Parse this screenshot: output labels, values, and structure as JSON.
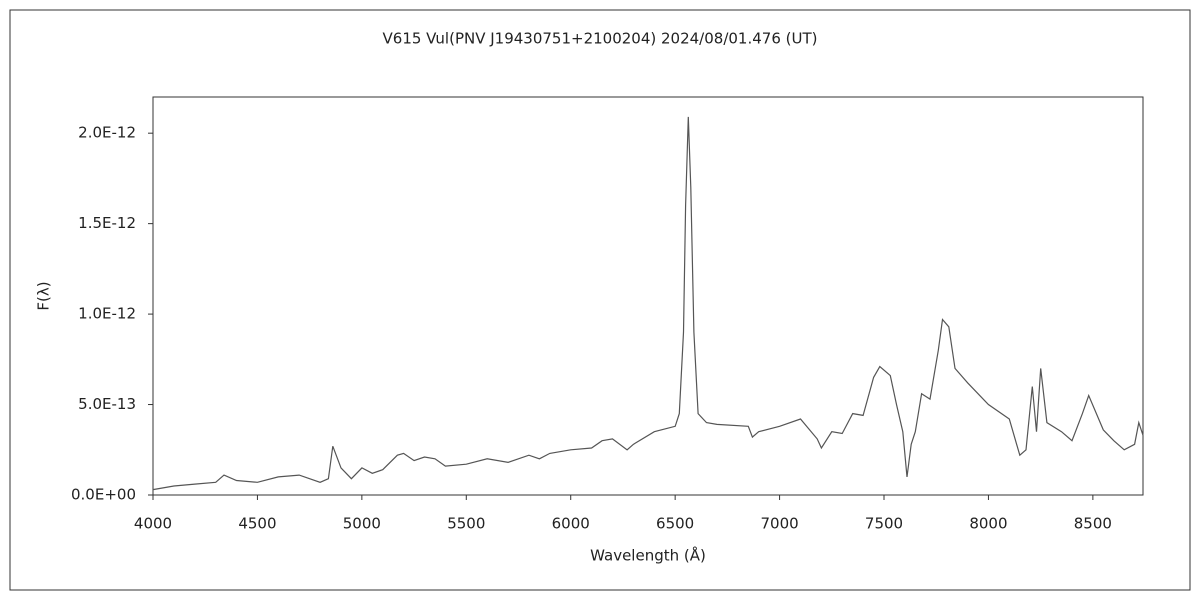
{
  "chart_data": {
    "type": "line",
    "title": "V615 Vul(PNV J19430751+2100204)   2024/08/01.476 (UT)",
    "x_label": "Wavelength (Å)",
    "y_label": "F(λ)",
    "color": "#555555",
    "x": [
      4000,
      4100,
      4200,
      4300,
      4340,
      4400,
      4500,
      4600,
      4700,
      4800,
      4840,
      4861,
      4900,
      4950,
      5000,
      5050,
      5100,
      5170,
      5200,
      5250,
      5300,
      5350,
      5400,
      5500,
      5600,
      5700,
      5800,
      5850,
      5900,
      6000,
      6100,
      6150,
      6200,
      6270,
      6300,
      6400,
      6500,
      6520,
      6540,
      6550,
      6563,
      6575,
      6590,
      6610,
      6650,
      6700,
      6850,
      6870,
      6900,
      7000,
      7100,
      7180,
      7200,
      7250,
      7300,
      7350,
      7400,
      7450,
      7480,
      7530,
      7560,
      7590,
      7610,
      7630,
      7650,
      7680,
      7720,
      7760,
      7780,
      7810,
      7840,
      7900,
      8000,
      8100,
      8150,
      8180,
      8210,
      8230,
      8250,
      8280,
      8350,
      8400,
      8450,
      8480,
      8550,
      8600,
      8650,
      8700,
      8720,
      8740
    ],
    "values": [
      3e-14,
      5e-14,
      6e-14,
      7e-14,
      1.1e-13,
      8e-14,
      7e-14,
      1e-13,
      1.1e-13,
      7e-14,
      9e-14,
      2.7e-13,
      1.5e-13,
      9e-14,
      1.5e-13,
      1.2e-13,
      1.4e-13,
      2.2e-13,
      2.3e-13,
      1.9e-13,
      2.1e-13,
      2e-13,
      1.6e-13,
      1.7e-13,
      2e-13,
      1.8e-13,
      2.2e-13,
      2e-13,
      2.3e-13,
      2.5e-13,
      2.6e-13,
      3e-13,
      3.1e-13,
      2.5e-13,
      2.8e-13,
      3.5e-13,
      3.8e-13,
      4.5e-13,
      9e-13,
      1.6e-12,
      2.09e-12,
      1.7e-12,
      9e-13,
      4.5e-13,
      4e-13,
      3.9e-13,
      3.8e-13,
      3.2e-13,
      3.5e-13,
      3.8e-13,
      4.2e-13,
      3.1e-13,
      2.6e-13,
      3.5e-13,
      3.4e-13,
      4.5e-13,
      4.4e-13,
      6.5e-13,
      7.1e-13,
      6.6e-13,
      5e-13,
      3.5e-13,
      1e-13,
      2.8e-13,
      3.5e-13,
      5.6e-13,
      5.3e-13,
      8e-13,
      9.7e-13,
      9.3e-13,
      7e-13,
      6.2e-13,
      5e-13,
      4.2e-13,
      2.2e-13,
      2.5e-13,
      6e-13,
      3.5e-13,
      7e-13,
      4e-13,
      3.5e-13,
      3e-13,
      4.5e-13,
      5.5e-13,
      3.6e-13,
      3e-13,
      2.5e-13,
      2.8e-13,
      4e-13,
      3.3e-13
    ],
    "xlim": [
      4000,
      8740
    ],
    "xticks": [
      4000,
      4500,
      5000,
      5500,
      6000,
      6500,
      7000,
      7500,
      8000,
      8500
    ],
    "ylim": [
      0,
      2.2e-12
    ],
    "yticks": [
      {
        "value": 0,
        "label": "0.0E+00"
      },
      {
        "value": 5e-13,
        "label": "5.0E-13"
      },
      {
        "value": 1e-12,
        "label": "1.0E-12"
      },
      {
        "value": 1.5e-12,
        "label": "1.5E-12"
      },
      {
        "value": 2e-12,
        "label": "2.0E-12"
      }
    ]
  }
}
